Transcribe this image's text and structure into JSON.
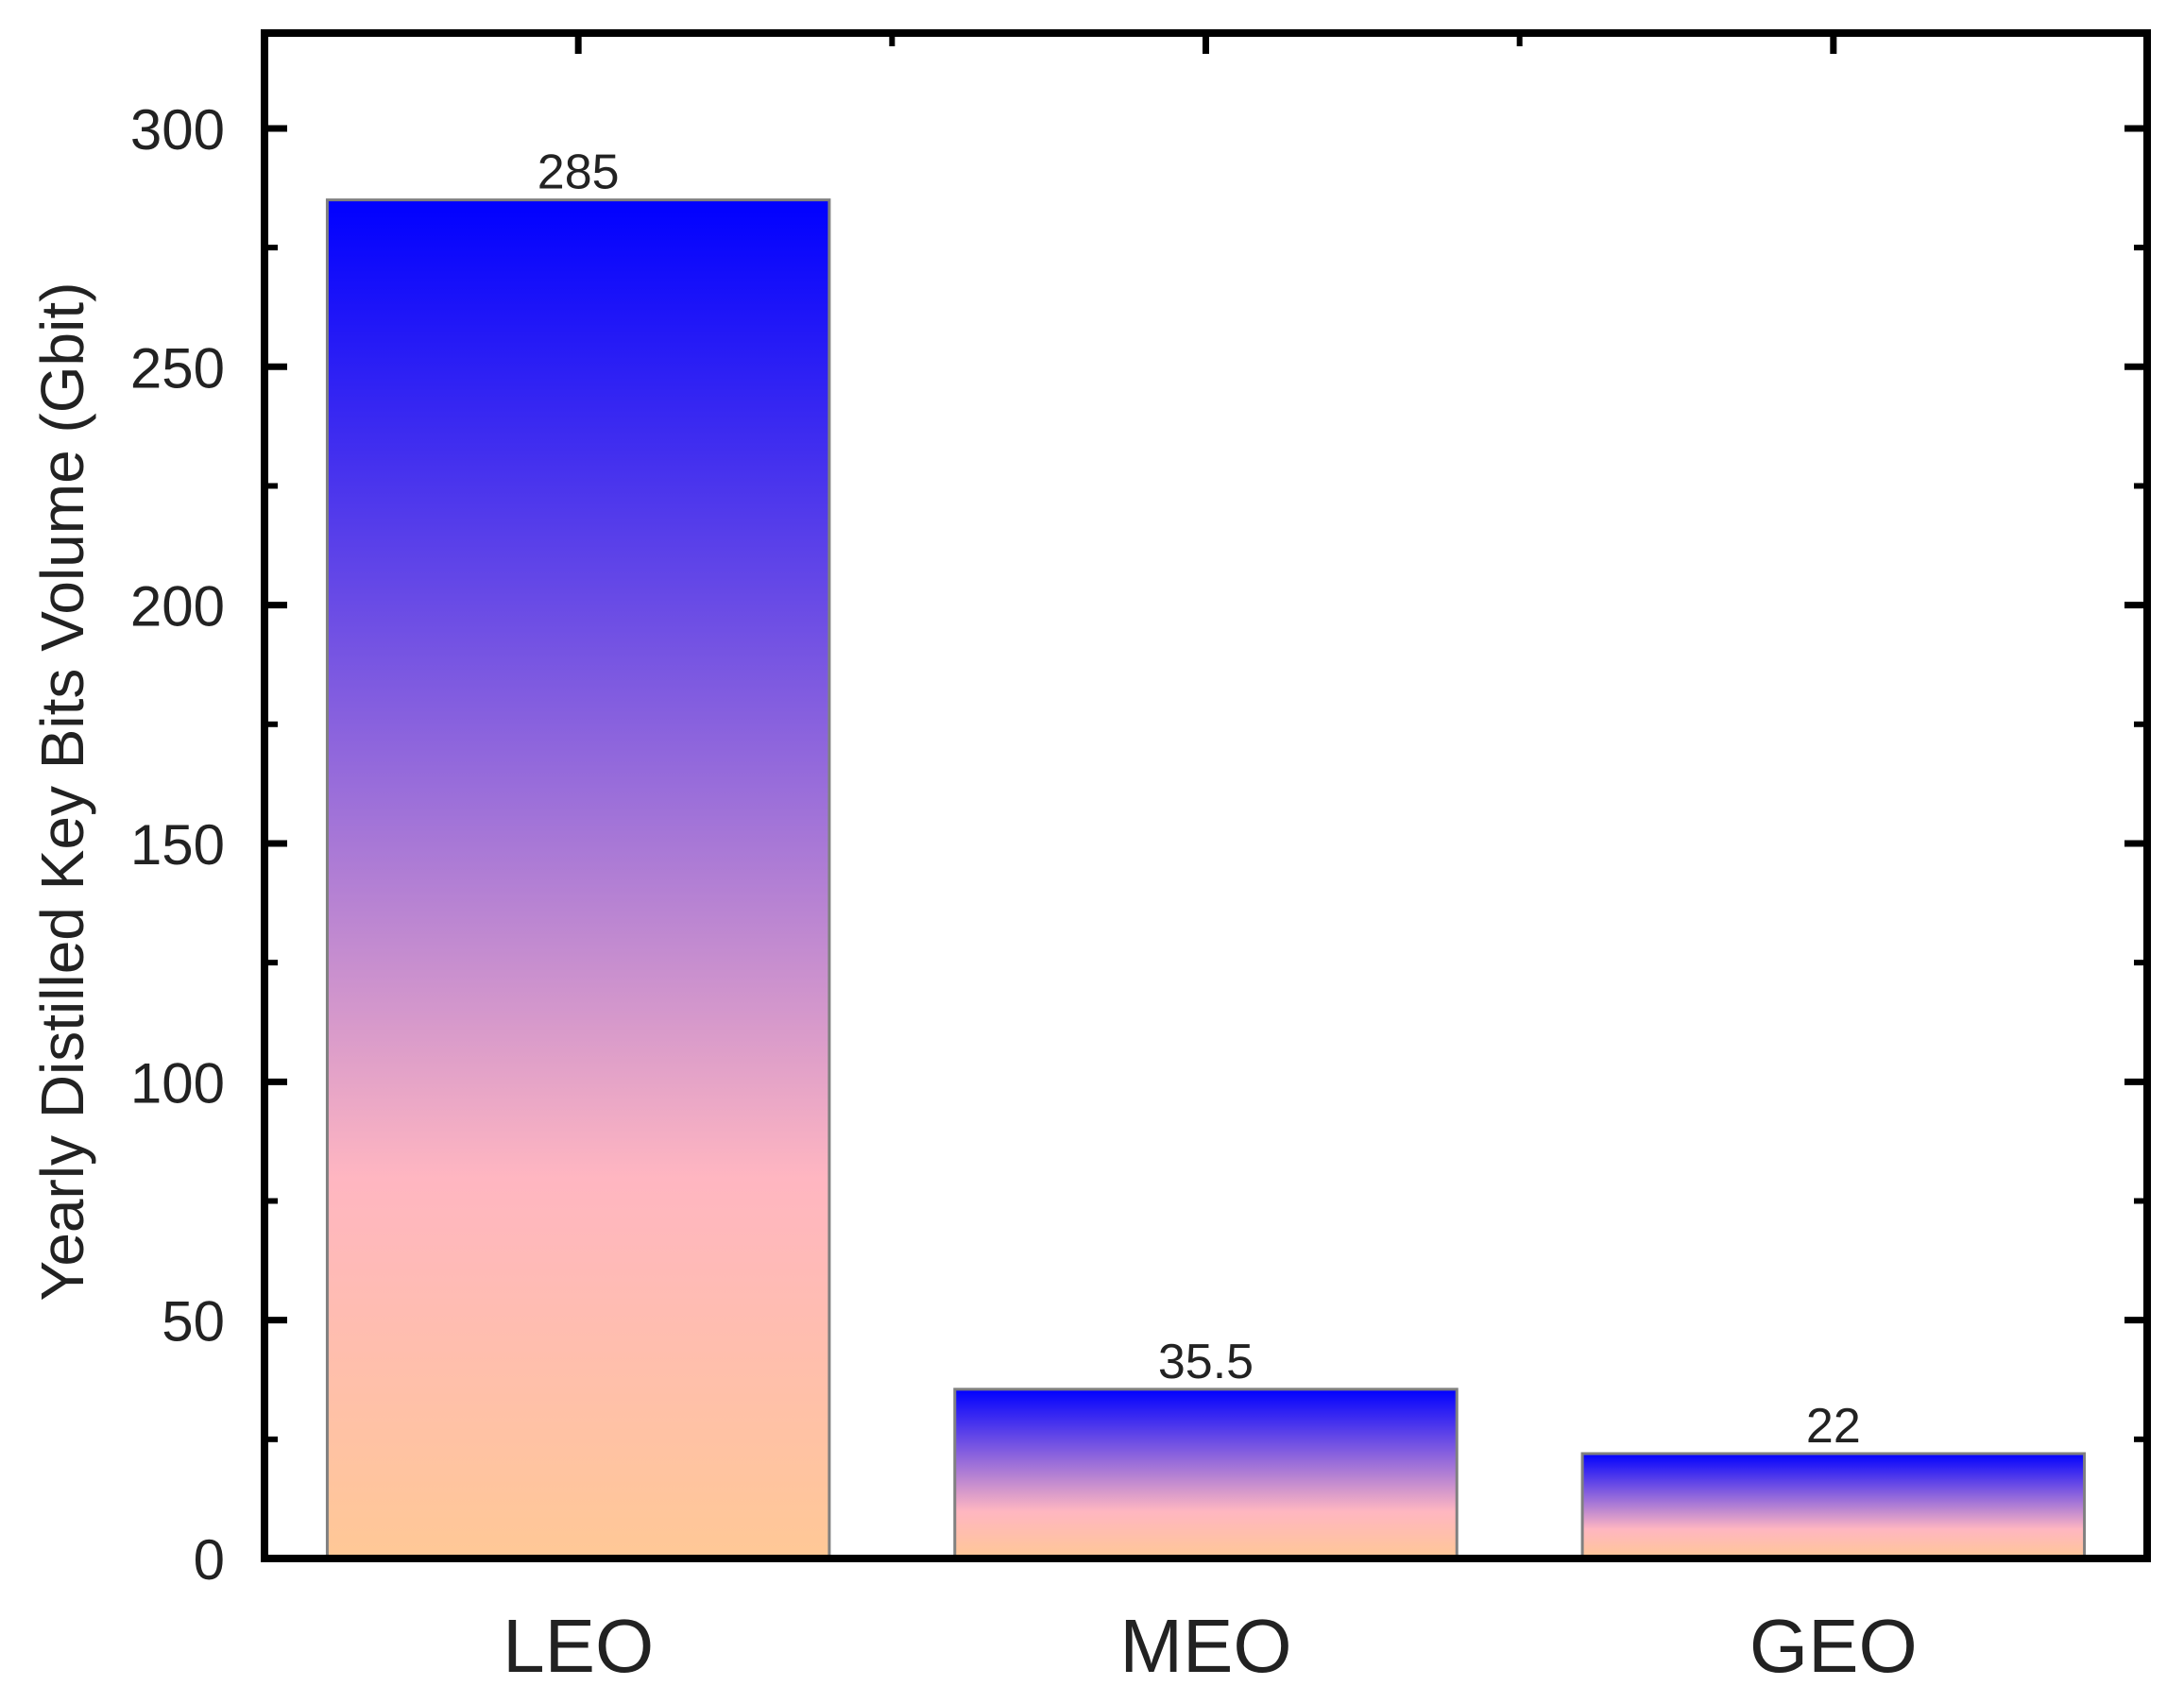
{
  "chart_data": {
    "type": "bar",
    "title": "",
    "xlabel": "",
    "ylabel": "Yearly Distilled Key Bits Volume (Gbit)",
    "categories": [
      "LEO",
      "MEO",
      "GEO"
    ],
    "values": [
      285,
      35.5,
      22
    ],
    "data_labels": [
      "285",
      "35.5",
      "22"
    ],
    "ylim": [
      0,
      320
    ],
    "yticks": [
      0,
      50,
      100,
      150,
      200,
      250,
      300
    ],
    "ytick_labels": [
      "0",
      "50",
      "100",
      "150",
      "200",
      "250",
      "300"
    ],
    "y_minor_tick_step": 25,
    "grid": false,
    "legend": "none",
    "bar_gradient": {
      "top": "#0000ff",
      "middle": "#ffb6c1",
      "bottom": "#ffc896"
    },
    "bar_edge_color": "#808080",
    "frame_color": "#000000"
  }
}
